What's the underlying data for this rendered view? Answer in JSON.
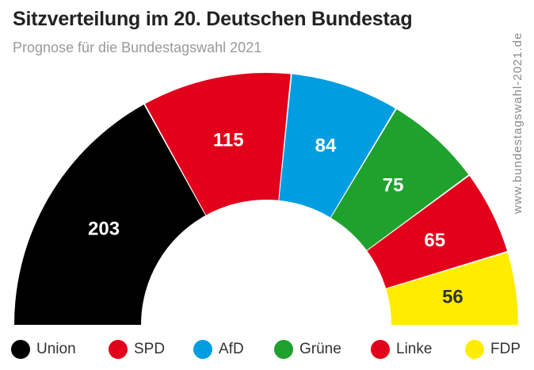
{
  "header": {
    "title": "Sitzverteilung im 20. Deutschen Bundestag",
    "subtitle": "Prognose für die Bundestagswahl 2021"
  },
  "watermark": "www.bundestagswahl-2021.de",
  "chart_data": {
    "type": "pie",
    "variant": "parliament-semicircle",
    "title": "Sitzverteilung im 20. Deutschen Bundestag",
    "subtitle": "Prognose für die Bundestagswahl 2021",
    "categories": [
      "Union",
      "SPD",
      "AfD",
      "Grüne",
      "Linke",
      "FDP"
    ],
    "values": [
      203,
      115,
      84,
      75,
      65,
      56
    ],
    "colors": [
      "#000000",
      "#e2001a",
      "#009ee0",
      "#1fa12e",
      "#e2001a",
      "#ffed00"
    ],
    "label_colors": [
      "#ffffff",
      "#ffffff",
      "#ffffff",
      "#ffffff",
      "#ffffff",
      "#333333"
    ],
    "legend_position": "bottom"
  }
}
